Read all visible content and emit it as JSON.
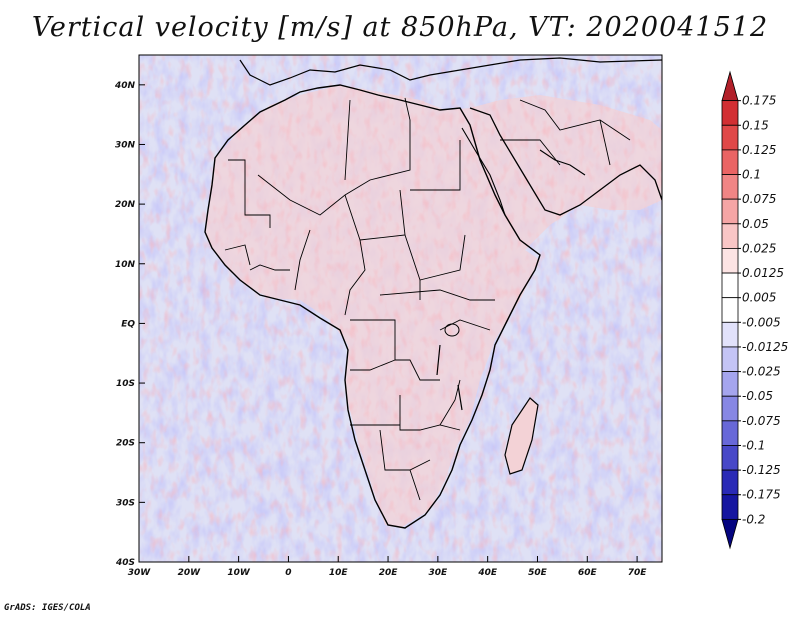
{
  "title": "Vertical velocity [m/s] at 850hPa, VT: 2020041512",
  "footer": "GrADS: IGES/COLA",
  "map": {
    "lon_range": [
      -30,
      75
    ],
    "lat_range": [
      -40,
      45
    ],
    "lon_ticks": [
      {
        "value": -30,
        "label": "30W"
      },
      {
        "value": -20,
        "label": "20W"
      },
      {
        "value": -10,
        "label": "10W"
      },
      {
        "value": 0,
        "label": "0"
      },
      {
        "value": 10,
        "label": "10E"
      },
      {
        "value": 20,
        "label": "20E"
      },
      {
        "value": 30,
        "label": "30E"
      },
      {
        "value": 40,
        "label": "40E"
      },
      {
        "value": 50,
        "label": "50E"
      },
      {
        "value": 60,
        "label": "60E"
      },
      {
        "value": 70,
        "label": "70E"
      }
    ],
    "lat_ticks": [
      {
        "value": 40,
        "label": "40N"
      },
      {
        "value": 30,
        "label": "30N"
      },
      {
        "value": 20,
        "label": "20N"
      },
      {
        "value": 10,
        "label": "10N"
      },
      {
        "value": 0,
        "label": "EQ"
      },
      {
        "value": -10,
        "label": "10S"
      },
      {
        "value": -20,
        "label": "20S"
      },
      {
        "value": -30,
        "label": "30S"
      },
      {
        "value": -40,
        "label": "40S"
      }
    ]
  },
  "colorbar": {
    "levels": [
      "0.175",
      "0.15",
      "0.125",
      "0.1",
      "0.075",
      "0.05",
      "0.025",
      "0.0125",
      "0.005",
      "-0.005",
      "-0.0125",
      "-0.025",
      "-0.05",
      "-0.075",
      "-0.1",
      "-0.125",
      "-0.175",
      "-0.2"
    ],
    "colors": [
      "#b2202a",
      "#d22f33",
      "#e04848",
      "#ea6464",
      "#f08585",
      "#f5a5a5",
      "#f9c6c6",
      "#fde4e4",
      "#ffffff",
      "#ffffff",
      "#e2e2fb",
      "#c4c4f5",
      "#a5a5ee",
      "#8787e4",
      "#6868d8",
      "#4848c8",
      "#2a2ab6",
      "#1616a0",
      "#050580"
    ]
  },
  "colors": {
    "ocean": "#d8dcf4",
    "land_red": "#f2c0c4",
    "coast": "#000000"
  }
}
